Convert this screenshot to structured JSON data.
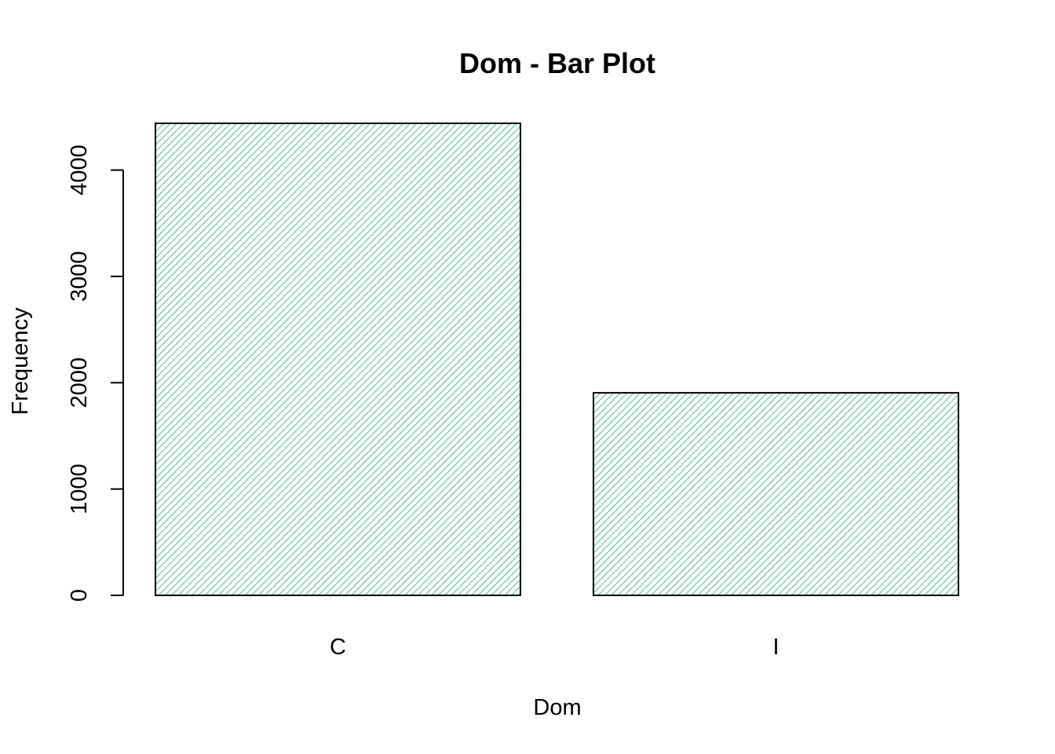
{
  "chart_data": {
    "type": "bar",
    "title": "Dom - Bar Plot",
    "xlabel": "Dom",
    "ylabel": "Frequency",
    "categories": [
      "C",
      "I"
    ],
    "values": [
      4440,
      1905
    ],
    "ylim": [
      0,
      4440
    ],
    "yticks": [
      0,
      1000,
      2000,
      3000,
      4000
    ],
    "yticks_labels": [
      "0",
      "1000",
      "2000",
      "3000",
      "4000"
    ],
    "bar_fill": "hatched",
    "hatch_color": "#66c2a5",
    "bar_border_color": "#000000",
    "grid": false,
    "legend": "none"
  }
}
